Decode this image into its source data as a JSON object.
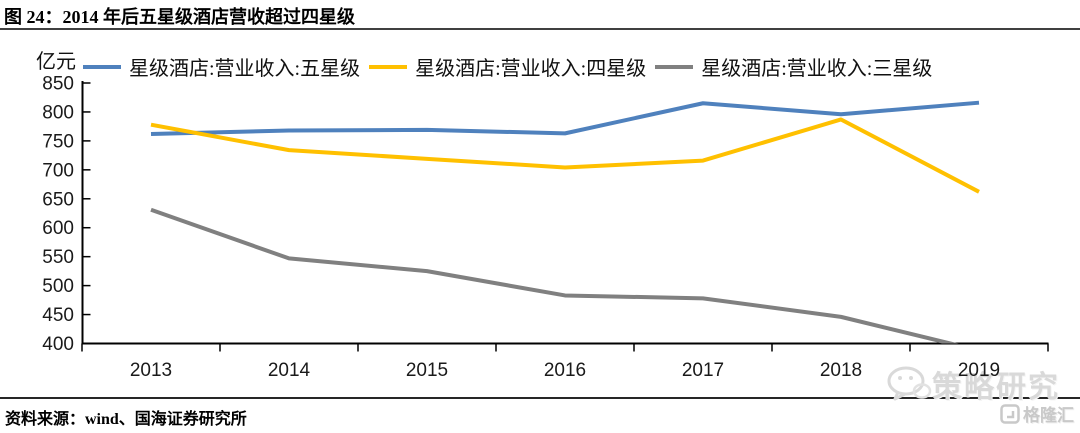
{
  "header": {
    "title": "图 24：2014 年后五星级酒店营收超过四星级"
  },
  "chart_data": {
    "type": "line",
    "unit_label": "亿元",
    "categories": [
      "2013",
      "2014",
      "2015",
      "2016",
      "2017",
      "2018",
      "2019"
    ],
    "series": [
      {
        "name": "星级酒店:营业收入:五星级",
        "color": "#4F81BD",
        "values": [
          762,
          768,
          769,
          763,
          815,
          796,
          816
        ]
      },
      {
        "name": "星级酒店:营业收入:四星级",
        "color": "#FFC000",
        "values": [
          778,
          734,
          719,
          704,
          716,
          787,
          662
        ]
      },
      {
        "name": "星级酒店:营业收入:三星级",
        "color": "#808080",
        "values": [
          631,
          547,
          525,
          483,
          478,
          446,
          388
        ]
      }
    ],
    "ylim": [
      400,
      850
    ],
    "yticks": [
      850,
      800,
      750,
      700,
      650,
      600,
      550,
      500,
      450,
      400
    ],
    "grid": false,
    "legend_position": "top",
    "axis_color": "#000000",
    "tick_label_color": "#1a1a1a",
    "note": "三星级 2019 值低于坐标轴下限 400，折线在轴处被截断"
  },
  "watermark": {
    "text": "策略研究"
  },
  "footer": {
    "source": "资料来源：wind、国海证券研究所",
    "logo_text": "格隆汇"
  }
}
